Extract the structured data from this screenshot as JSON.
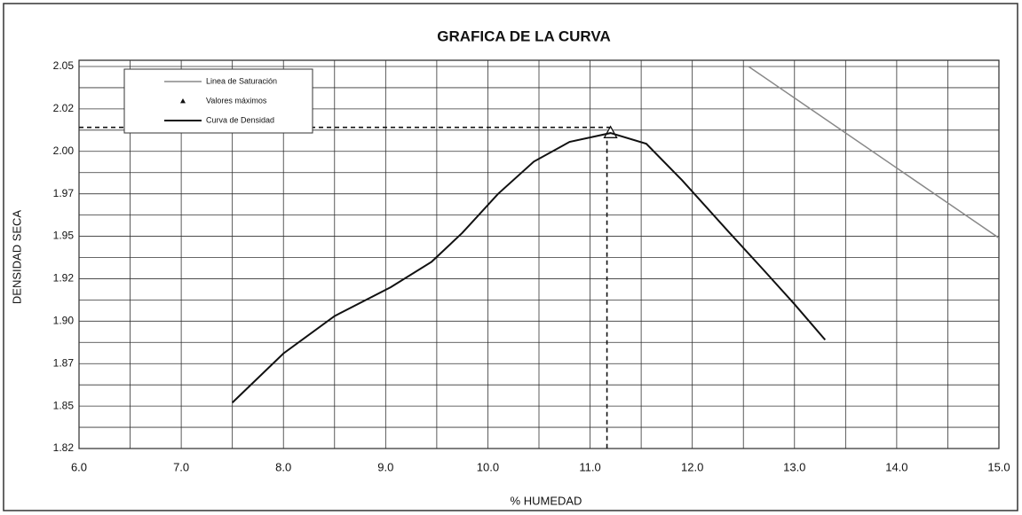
{
  "chart_data": {
    "type": "line",
    "title": "GRAFICA DE LA CURVA",
    "x_label": "% HUMEDAD",
    "y_label": "DENSIDAD SECA",
    "xlim": [
      6.0,
      15.0
    ],
    "ylim": [
      1.825,
      2.05
    ],
    "xticks": [
      {
        "value": 6,
        "label": "6.0"
      },
      {
        "value": 7,
        "label": "7.0"
      },
      {
        "value": 8,
        "label": "8.0"
      },
      {
        "value": 9,
        "label": "9.0"
      },
      {
        "value": 10,
        "label": "10.0"
      },
      {
        "value": 11,
        "label": "11.0"
      },
      {
        "value": 12,
        "label": "12.0"
      },
      {
        "value": 13,
        "label": "13.0"
      },
      {
        "value": 14,
        "label": "14.0"
      },
      {
        "value": 15,
        "label": "15.0"
      }
    ],
    "yticks": [
      {
        "value": 1.825,
        "label": "1.82"
      },
      {
        "value": 1.85,
        "label": "1.85"
      },
      {
        "value": 1.875,
        "label": "1.87"
      },
      {
        "value": 1.9,
        "label": "1.90"
      },
      {
        "value": 1.925,
        "label": "1.92"
      },
      {
        "value": 1.95,
        "label": "1.95"
      },
      {
        "value": 1.975,
        "label": "1.97"
      },
      {
        "value": 2.0,
        "label": "2.00"
      },
      {
        "value": 2.025,
        "label": "2.02"
      },
      {
        "value": 2.05,
        "label": "2.05"
      }
    ],
    "xminor": [
      6.5,
      7.5,
      8.5,
      9.5,
      10.5,
      11.5,
      12.5,
      13.5,
      14.5
    ],
    "yminor": [
      1.8375,
      1.8625,
      1.8875,
      1.9125,
      1.9375,
      1.9625,
      1.9875,
      2.0125,
      2.0375
    ],
    "grid": true,
    "legend": "upper left",
    "series": [
      {
        "name": "Linea de Saturación",
        "color": "#888888",
        "marker": "none",
        "x": [
          12.55,
          15.0
        ],
        "values": [
          2.05,
          1.949
        ]
      },
      {
        "name": "Valores máximos",
        "color": "#111111",
        "marker": "triangle",
        "x": [
          11.2
        ],
        "values": [
          2.011
        ]
      },
      {
        "name": "Curva de Densidad",
        "color": "#111111",
        "marker": "none",
        "x": [
          7.5,
          8.0,
          8.5,
          9.05,
          9.45,
          9.75,
          10.1,
          10.45,
          10.8,
          11.2,
          11.55,
          11.9,
          12.35,
          12.7,
          13.0,
          13.3
        ],
        "values": [
          1.852,
          1.881,
          1.903,
          1.92,
          1.935,
          1.952,
          1.975,
          1.994,
          2.0056,
          2.0108,
          2.0045,
          1.983,
          1.953,
          1.93,
          1.91,
          1.889
        ]
      }
    ]
  }
}
